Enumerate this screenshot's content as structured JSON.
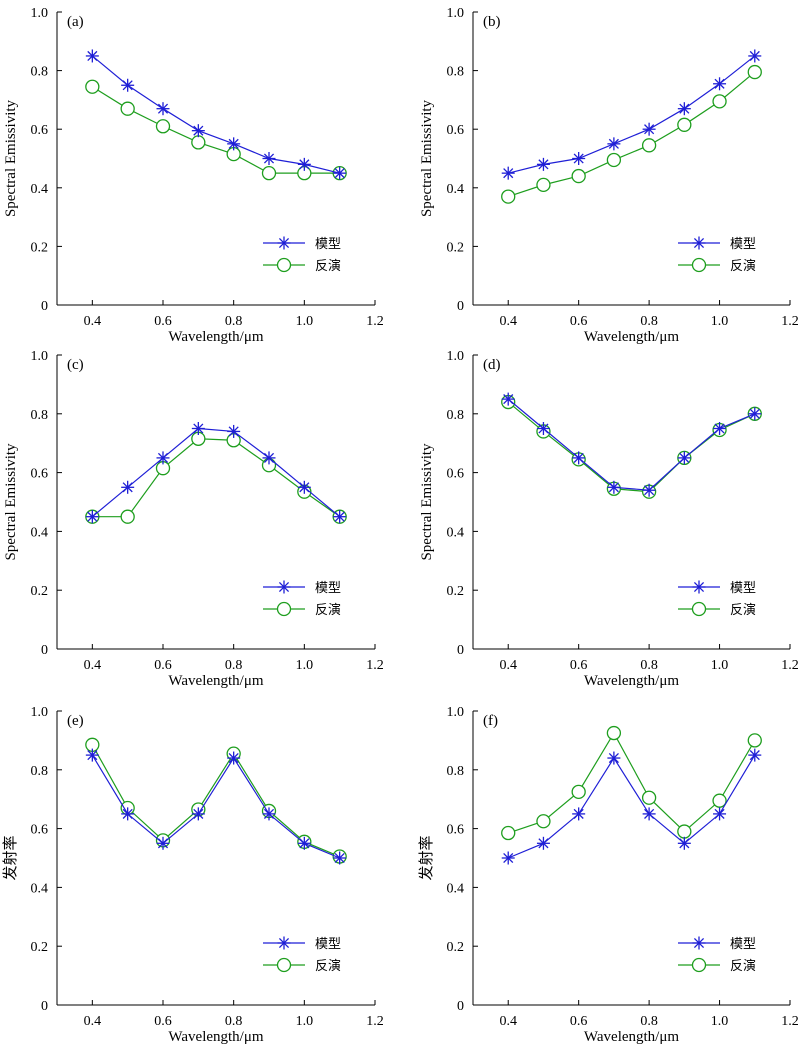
{
  "colors": {
    "model": "#1f1fd6",
    "inversion": "#1e9e1e"
  },
  "chart_data": [
    {
      "type": "line",
      "panel_label": "(a)",
      "xlabel": "Wavelength/μm",
      "ylabel": "Spectral Emissivity",
      "xlim": [
        0.3,
        1.2
      ],
      "ylim": [
        0,
        1.0
      ],
      "xticks": [
        "0.4",
        "0.6",
        "0.8",
        "1.0",
        "1.2"
      ],
      "yticks": [
        "0",
        "0.2",
        "0.4",
        "0.6",
        "0.8",
        "1.0"
      ],
      "x": [
        0.4,
        0.5,
        0.6,
        0.7,
        0.8,
        0.9,
        1.0,
        1.1
      ],
      "series": [
        {
          "name": "模型",
          "marker": "star",
          "values": [
            0.85,
            0.75,
            0.67,
            0.595,
            0.55,
            0.5,
            0.48,
            0.45
          ]
        },
        {
          "name": "反演",
          "marker": "circle",
          "values": [
            0.745,
            0.67,
            0.61,
            0.555,
            0.515,
            0.45,
            0.45,
            0.45
          ]
        }
      ]
    },
    {
      "type": "line",
      "panel_label": "(b)",
      "xlabel": "Wavelength/μm",
      "ylabel": "Spectral Emissivity",
      "xlim": [
        0.3,
        1.2
      ],
      "ylim": [
        0,
        1.0
      ],
      "xticks": [
        "0.4",
        "0.6",
        "0.8",
        "1.0",
        "1.2"
      ],
      "yticks": [
        "0",
        "0.2",
        "0.4",
        "0.6",
        "0.8",
        "1.0"
      ],
      "x": [
        0.4,
        0.5,
        0.6,
        0.7,
        0.8,
        0.9,
        1.0,
        1.1
      ],
      "series": [
        {
          "name": "模型",
          "marker": "star",
          "values": [
            0.45,
            0.48,
            0.5,
            0.55,
            0.6,
            0.67,
            0.755,
            0.85
          ]
        },
        {
          "name": "反演",
          "marker": "circle",
          "values": [
            0.37,
            0.41,
            0.44,
            0.495,
            0.545,
            0.615,
            0.695,
            0.795
          ]
        }
      ]
    },
    {
      "type": "line",
      "panel_label": "(c)",
      "xlabel": "Wavelength/μm",
      "ylabel": "Spectral Emissivity",
      "xlim": [
        0.3,
        1.2
      ],
      "ylim": [
        0,
        1.0
      ],
      "xticks": [
        "0.4",
        "0.6",
        "0.8",
        "1.0",
        "1.2"
      ],
      "yticks": [
        "0",
        "0.2",
        "0.4",
        "0.6",
        "0.8",
        "1.0"
      ],
      "x": [
        0.4,
        0.5,
        0.6,
        0.7,
        0.8,
        0.9,
        1.0,
        1.1
      ],
      "series": [
        {
          "name": "模型",
          "marker": "star",
          "values": [
            0.45,
            0.55,
            0.65,
            0.75,
            0.74,
            0.65,
            0.55,
            0.45
          ]
        },
        {
          "name": "反演",
          "marker": "circle",
          "values": [
            0.45,
            0.45,
            0.615,
            0.715,
            0.71,
            0.625,
            0.535,
            0.45
          ]
        }
      ]
    },
    {
      "type": "line",
      "panel_label": "(d)",
      "xlabel": "Wavelength/μm",
      "ylabel": "Spectral Emissivity",
      "xlim": [
        0.3,
        1.2
      ],
      "ylim": [
        0,
        1.0
      ],
      "xticks": [
        "0.4",
        "0.6",
        "0.8",
        "1.0",
        "1.2"
      ],
      "yticks": [
        "0",
        "0.2",
        "0.4",
        "0.6",
        "0.8",
        "1.0"
      ],
      "x": [
        0.4,
        0.5,
        0.6,
        0.7,
        0.8,
        0.9,
        1.0,
        1.1
      ],
      "series": [
        {
          "name": "模型",
          "marker": "star",
          "values": [
            0.85,
            0.75,
            0.65,
            0.55,
            0.54,
            0.65,
            0.75,
            0.8
          ]
        },
        {
          "name": "反演",
          "marker": "circle",
          "values": [
            0.84,
            0.74,
            0.645,
            0.545,
            0.535,
            0.65,
            0.745,
            0.8
          ]
        }
      ]
    },
    {
      "type": "line",
      "panel_label": "(e)",
      "xlabel": "Wavelength/μm",
      "ylabel": "发射率",
      "xlim": [
        0.3,
        1.2
      ],
      "ylim": [
        0,
        1.0
      ],
      "xticks": [
        "0.4",
        "0.6",
        "0.8",
        "1.0",
        "1.2"
      ],
      "yticks": [
        "0",
        "0.2",
        "0.4",
        "0.6",
        "0.8",
        "1.0"
      ],
      "x": [
        0.4,
        0.5,
        0.6,
        0.7,
        0.8,
        0.9,
        1.0,
        1.1
      ],
      "series": [
        {
          "name": "模型",
          "marker": "star",
          "values": [
            0.85,
            0.65,
            0.55,
            0.65,
            0.84,
            0.65,
            0.55,
            0.5
          ]
        },
        {
          "name": "反演",
          "marker": "circle",
          "values": [
            0.885,
            0.67,
            0.56,
            0.665,
            0.855,
            0.66,
            0.555,
            0.505
          ]
        }
      ]
    },
    {
      "type": "line",
      "panel_label": "(f)",
      "xlabel": "Wavelength/μm",
      "ylabel": "发射率",
      "xlim": [
        0.3,
        1.2
      ],
      "ylim": [
        0,
        1.0
      ],
      "xticks": [
        "0.4",
        "0.6",
        "0.8",
        "1.0",
        "1.2"
      ],
      "yticks": [
        "0",
        "0.2",
        "0.4",
        "0.6",
        "0.8",
        "1.0"
      ],
      "x": [
        0.4,
        0.5,
        0.6,
        0.7,
        0.8,
        0.9,
        1.0,
        1.1
      ],
      "series": [
        {
          "name": "模型",
          "marker": "star",
          "values": [
            0.5,
            0.55,
            0.65,
            0.84,
            0.65,
            0.55,
            0.65,
            0.85
          ]
        },
        {
          "name": "反演",
          "marker": "circle",
          "values": [
            0.585,
            0.625,
            0.725,
            0.925,
            0.705,
            0.59,
            0.695,
            0.9
          ]
        }
      ]
    }
  ]
}
